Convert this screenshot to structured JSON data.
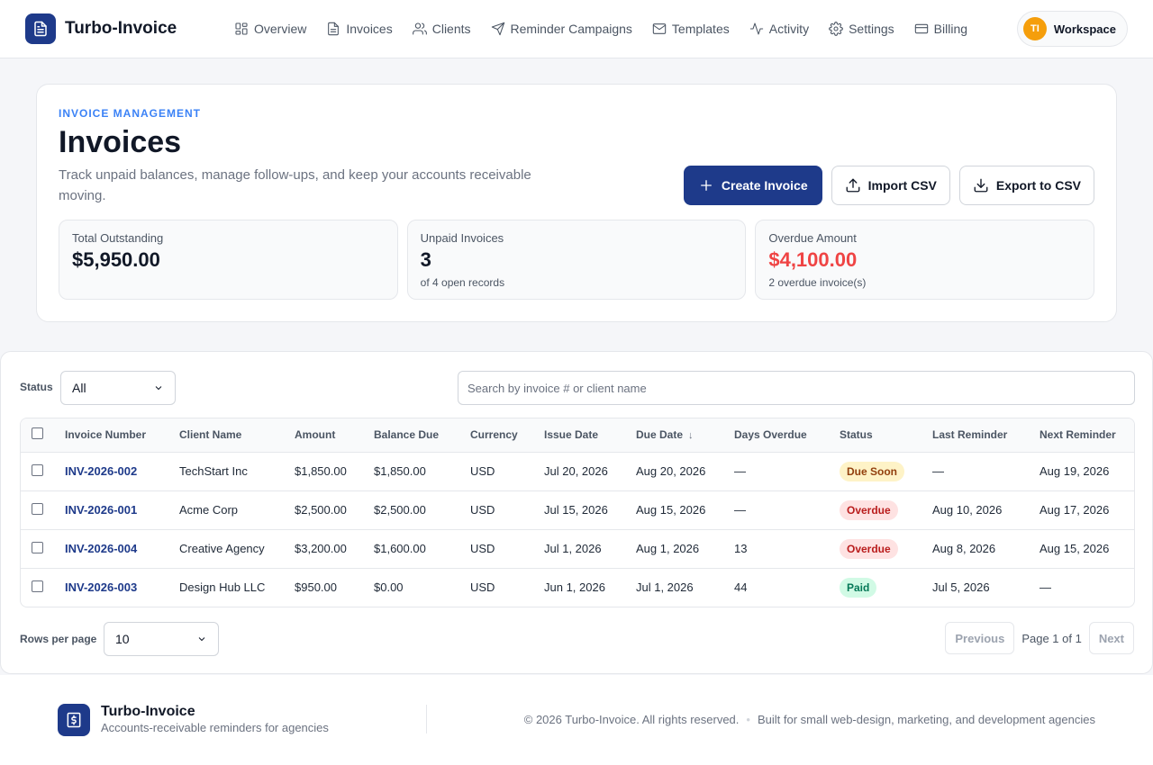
{
  "brand": {
    "name": "Turbo-Invoice",
    "logo_icon": "invoice-document-icon"
  },
  "nav": [
    {
      "label": "Overview",
      "icon": "grid-icon"
    },
    {
      "label": "Invoices",
      "icon": "document-icon"
    },
    {
      "label": "Clients",
      "icon": "users-icon"
    },
    {
      "label": "Reminder Campaigns",
      "icon": "send-icon"
    },
    {
      "label": "Templates",
      "icon": "mail-icon"
    },
    {
      "label": "Activity",
      "icon": "activity-icon"
    },
    {
      "label": "Settings",
      "icon": "gear-icon"
    },
    {
      "label": "Billing",
      "icon": "credit-card-icon"
    }
  ],
  "workspace": {
    "initials": "TI",
    "label": "Workspace"
  },
  "hero": {
    "eyebrow": "INVOICE MANAGEMENT",
    "title": "Invoices",
    "description": "Track unpaid balances, manage follow-ups, and keep your accounts receivable moving.",
    "actions": {
      "create": "Create Invoice",
      "import": "Import CSV",
      "export": "Export to CSV"
    }
  },
  "stats": [
    {
      "label": "Total Outstanding",
      "value": "$5,950.00",
      "sub": ""
    },
    {
      "label": "Unpaid Invoices",
      "value": "3",
      "sub": "of 4 open records"
    },
    {
      "label": "Overdue Amount",
      "value": "$4,100.00",
      "sub": "2 overdue invoice(s)"
    }
  ],
  "filters": {
    "status_label": "Status",
    "status_value": "All",
    "search_placeholder": "Search by invoice # or client name"
  },
  "table": {
    "headers": [
      "Invoice Number",
      "Client Name",
      "Amount",
      "Balance Due",
      "Currency",
      "Issue Date",
      "Due Date",
      "Days Overdue",
      "Status",
      "Last Reminder",
      "Next Reminder"
    ],
    "sort_indicator": "↓",
    "rows": [
      {
        "invoice": "INV-2026-002",
        "client": "TechStart Inc",
        "amount": "$1,850.00",
        "balance": "$1,850.00",
        "currency": "USD",
        "issue": "Jul 20, 2026",
        "due": "Aug 20, 2026",
        "days": "—",
        "status": "Due Soon",
        "last": "—",
        "next": "Aug 19, 2026"
      },
      {
        "invoice": "INV-2026-001",
        "client": "Acme Corp",
        "amount": "$2,500.00",
        "balance": "$2,500.00",
        "currency": "USD",
        "issue": "Jul 15, 2026",
        "due": "Aug 15, 2026",
        "days": "—",
        "status": "Overdue",
        "last": "Aug 10, 2026",
        "next": "Aug 17, 2026"
      },
      {
        "invoice": "INV-2026-004",
        "client": "Creative Agency",
        "amount": "$3,200.00",
        "balance": "$1,600.00",
        "currency": "USD",
        "issue": "Jul 1, 2026",
        "due": "Aug 1, 2026",
        "days": "13",
        "status": "Overdue",
        "last": "Aug 8, 2026",
        "next": "Aug 15, 2026"
      },
      {
        "invoice": "INV-2026-003",
        "client": "Design Hub LLC",
        "amount": "$950.00",
        "balance": "$0.00",
        "currency": "USD",
        "issue": "Jun 1, 2026",
        "due": "Jul 1, 2026",
        "days": "44",
        "status": "Paid",
        "last": "Jul 5, 2026",
        "next": "—"
      }
    ]
  },
  "pagination": {
    "rows_label": "Rows per page",
    "rows_value": "10",
    "previous": "Previous",
    "page_text": "Page 1 of 1",
    "next": "Next"
  },
  "footer": {
    "name": "Turbo-Invoice",
    "tagline": "Accounts-receivable reminders for agencies",
    "copyright": "© 2026 Turbo-Invoice. All rights reserved.",
    "separator": "•",
    "built_for": "Built for small web-design, marketing, and development agencies"
  },
  "colors": {
    "brand": "#1e3a8a",
    "accent": "#3b82f6",
    "danger": "#ef4444",
    "avatar": "#f59e0b"
  }
}
